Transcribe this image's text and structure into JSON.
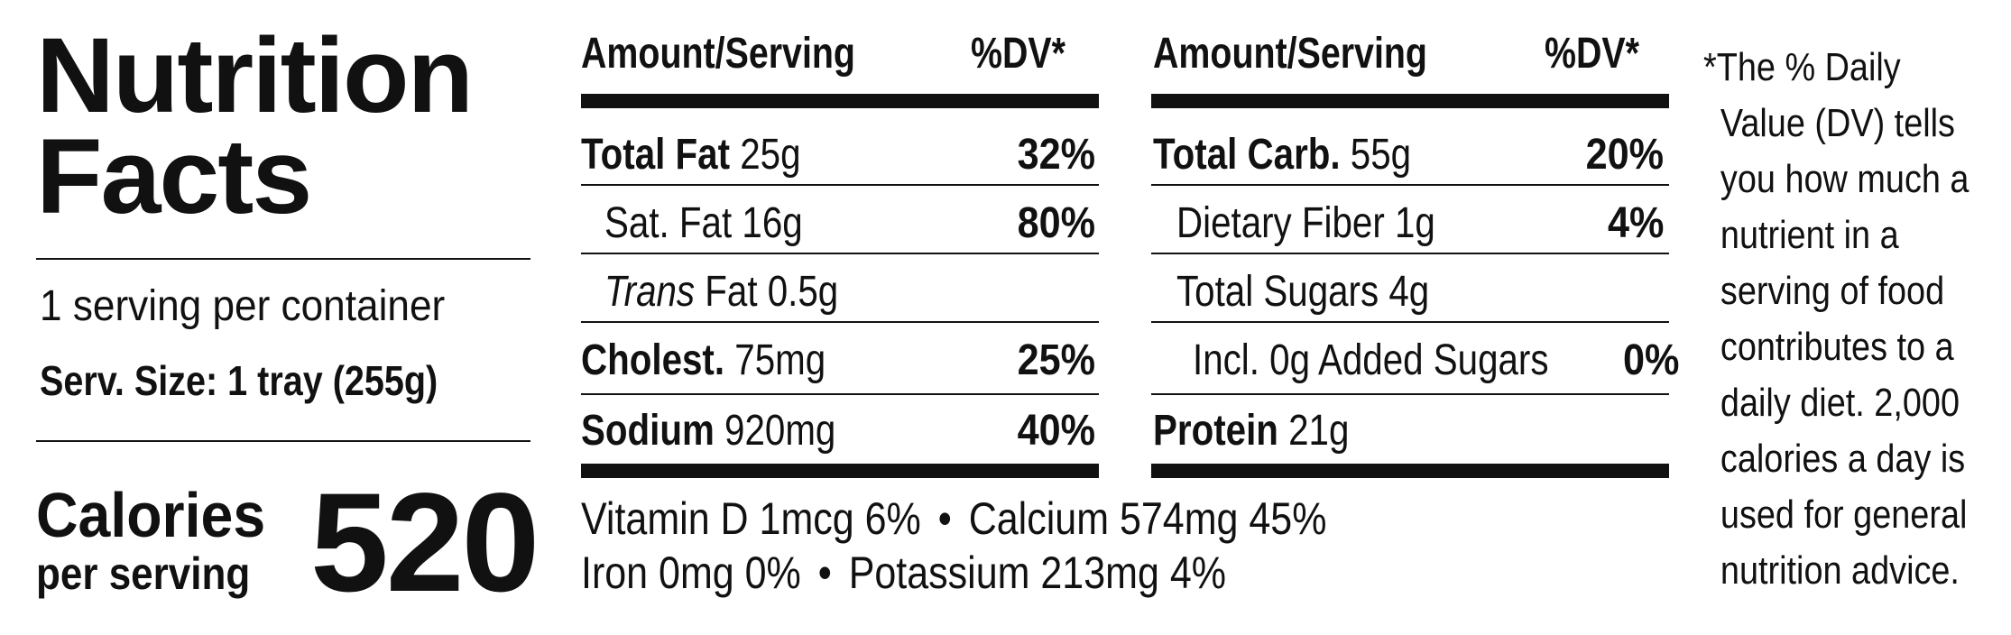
{
  "label": {
    "title_line1": "Nutrition",
    "title_line2": "Facts",
    "servings_per_container": "1 serving per container",
    "serving_size": "Serv. Size: 1 tray (255g)",
    "calories_label": "Calories",
    "calories_sublabel": "per serving",
    "calories_value": "520"
  },
  "columns": [
    {
      "header_amount": "Amount/Serving",
      "header_dv": "%DV*",
      "rows": [
        {
          "name": "Total Fat",
          "amount": "25g",
          "dv": "32%"
        },
        {
          "name": "Sat. Fat",
          "amount": "16g",
          "dv": "80%"
        },
        {
          "name": "Trans",
          "name_suffix": "Fat",
          "amount": "0.5g",
          "dv": ""
        },
        {
          "name": "Cholest.",
          "amount": "75mg",
          "dv": "25%"
        },
        {
          "name": "Sodium",
          "amount": "920mg",
          "dv": "40%"
        }
      ]
    },
    {
      "header_amount": "Amount/Serving",
      "header_dv": "%DV*",
      "rows": [
        {
          "name": "Total Carb.",
          "amount": "55g",
          "dv": "20%"
        },
        {
          "name": "Dietary Fiber",
          "amount": "1g",
          "dv": "4%"
        },
        {
          "name": "Total Sugars",
          "amount": "4g",
          "dv": ""
        },
        {
          "name": "Incl. 0g Added Sugars",
          "amount": "",
          "dv": "0%"
        },
        {
          "name": "Protein",
          "amount": "21g",
          "dv": ""
        }
      ]
    }
  ],
  "vitamins": {
    "line1_a": "Vitamin D 1mcg 6%",
    "line1_b": "Calcium 574mg 45%",
    "line2_a": "Iron 0mg 0%",
    "line2_b": "Potassium 213mg 4%",
    "separator": "•"
  },
  "footnote": {
    "lines": [
      "*The % Daily",
      "Value (DV) tells",
      "you how much a",
      "nutrient in a",
      "serving of food",
      "contributes to a",
      "daily diet. 2,000",
      "calories a day is",
      "used for general",
      "nutrition advice."
    ]
  }
}
